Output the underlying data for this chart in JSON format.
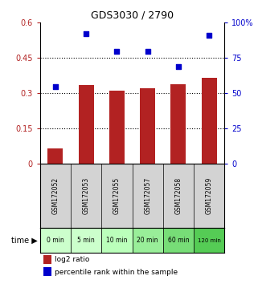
{
  "title": "GDS3030 / 2790",
  "samples": [
    "GSM172052",
    "GSM172053",
    "GSM172055",
    "GSM172057",
    "GSM172058",
    "GSM172059"
  ],
  "time_labels": [
    "0 min",
    "5 min",
    "10 min",
    "20 min",
    "60 min",
    "120 min"
  ],
  "log2_ratio": [
    0.065,
    0.335,
    0.31,
    0.32,
    0.34,
    0.365
  ],
  "percentile_rank": [
    55,
    92,
    80,
    80,
    69,
    91
  ],
  "bar_color": "#b22222",
  "dot_color": "#0000cc",
  "left_yticks": [
    0,
    0.15,
    0.3,
    0.45,
    0.6
  ],
  "right_yticks": [
    0,
    25,
    50,
    75,
    100
  ],
  "ylim_left": [
    0,
    0.6
  ],
  "ylim_right": [
    0,
    100
  ],
  "time_colors": [
    "#ccffcc",
    "#ccffcc",
    "#bbffbb",
    "#99ee99",
    "#77dd77",
    "#55cc55"
  ],
  "label_log2": "log2 ratio",
  "label_pct": "percentile rank within the sample",
  "background_color": "#ffffff",
  "sample_bg_color": "#d3d3d3",
  "grid_yticks": [
    0.15,
    0.3,
    0.45
  ]
}
